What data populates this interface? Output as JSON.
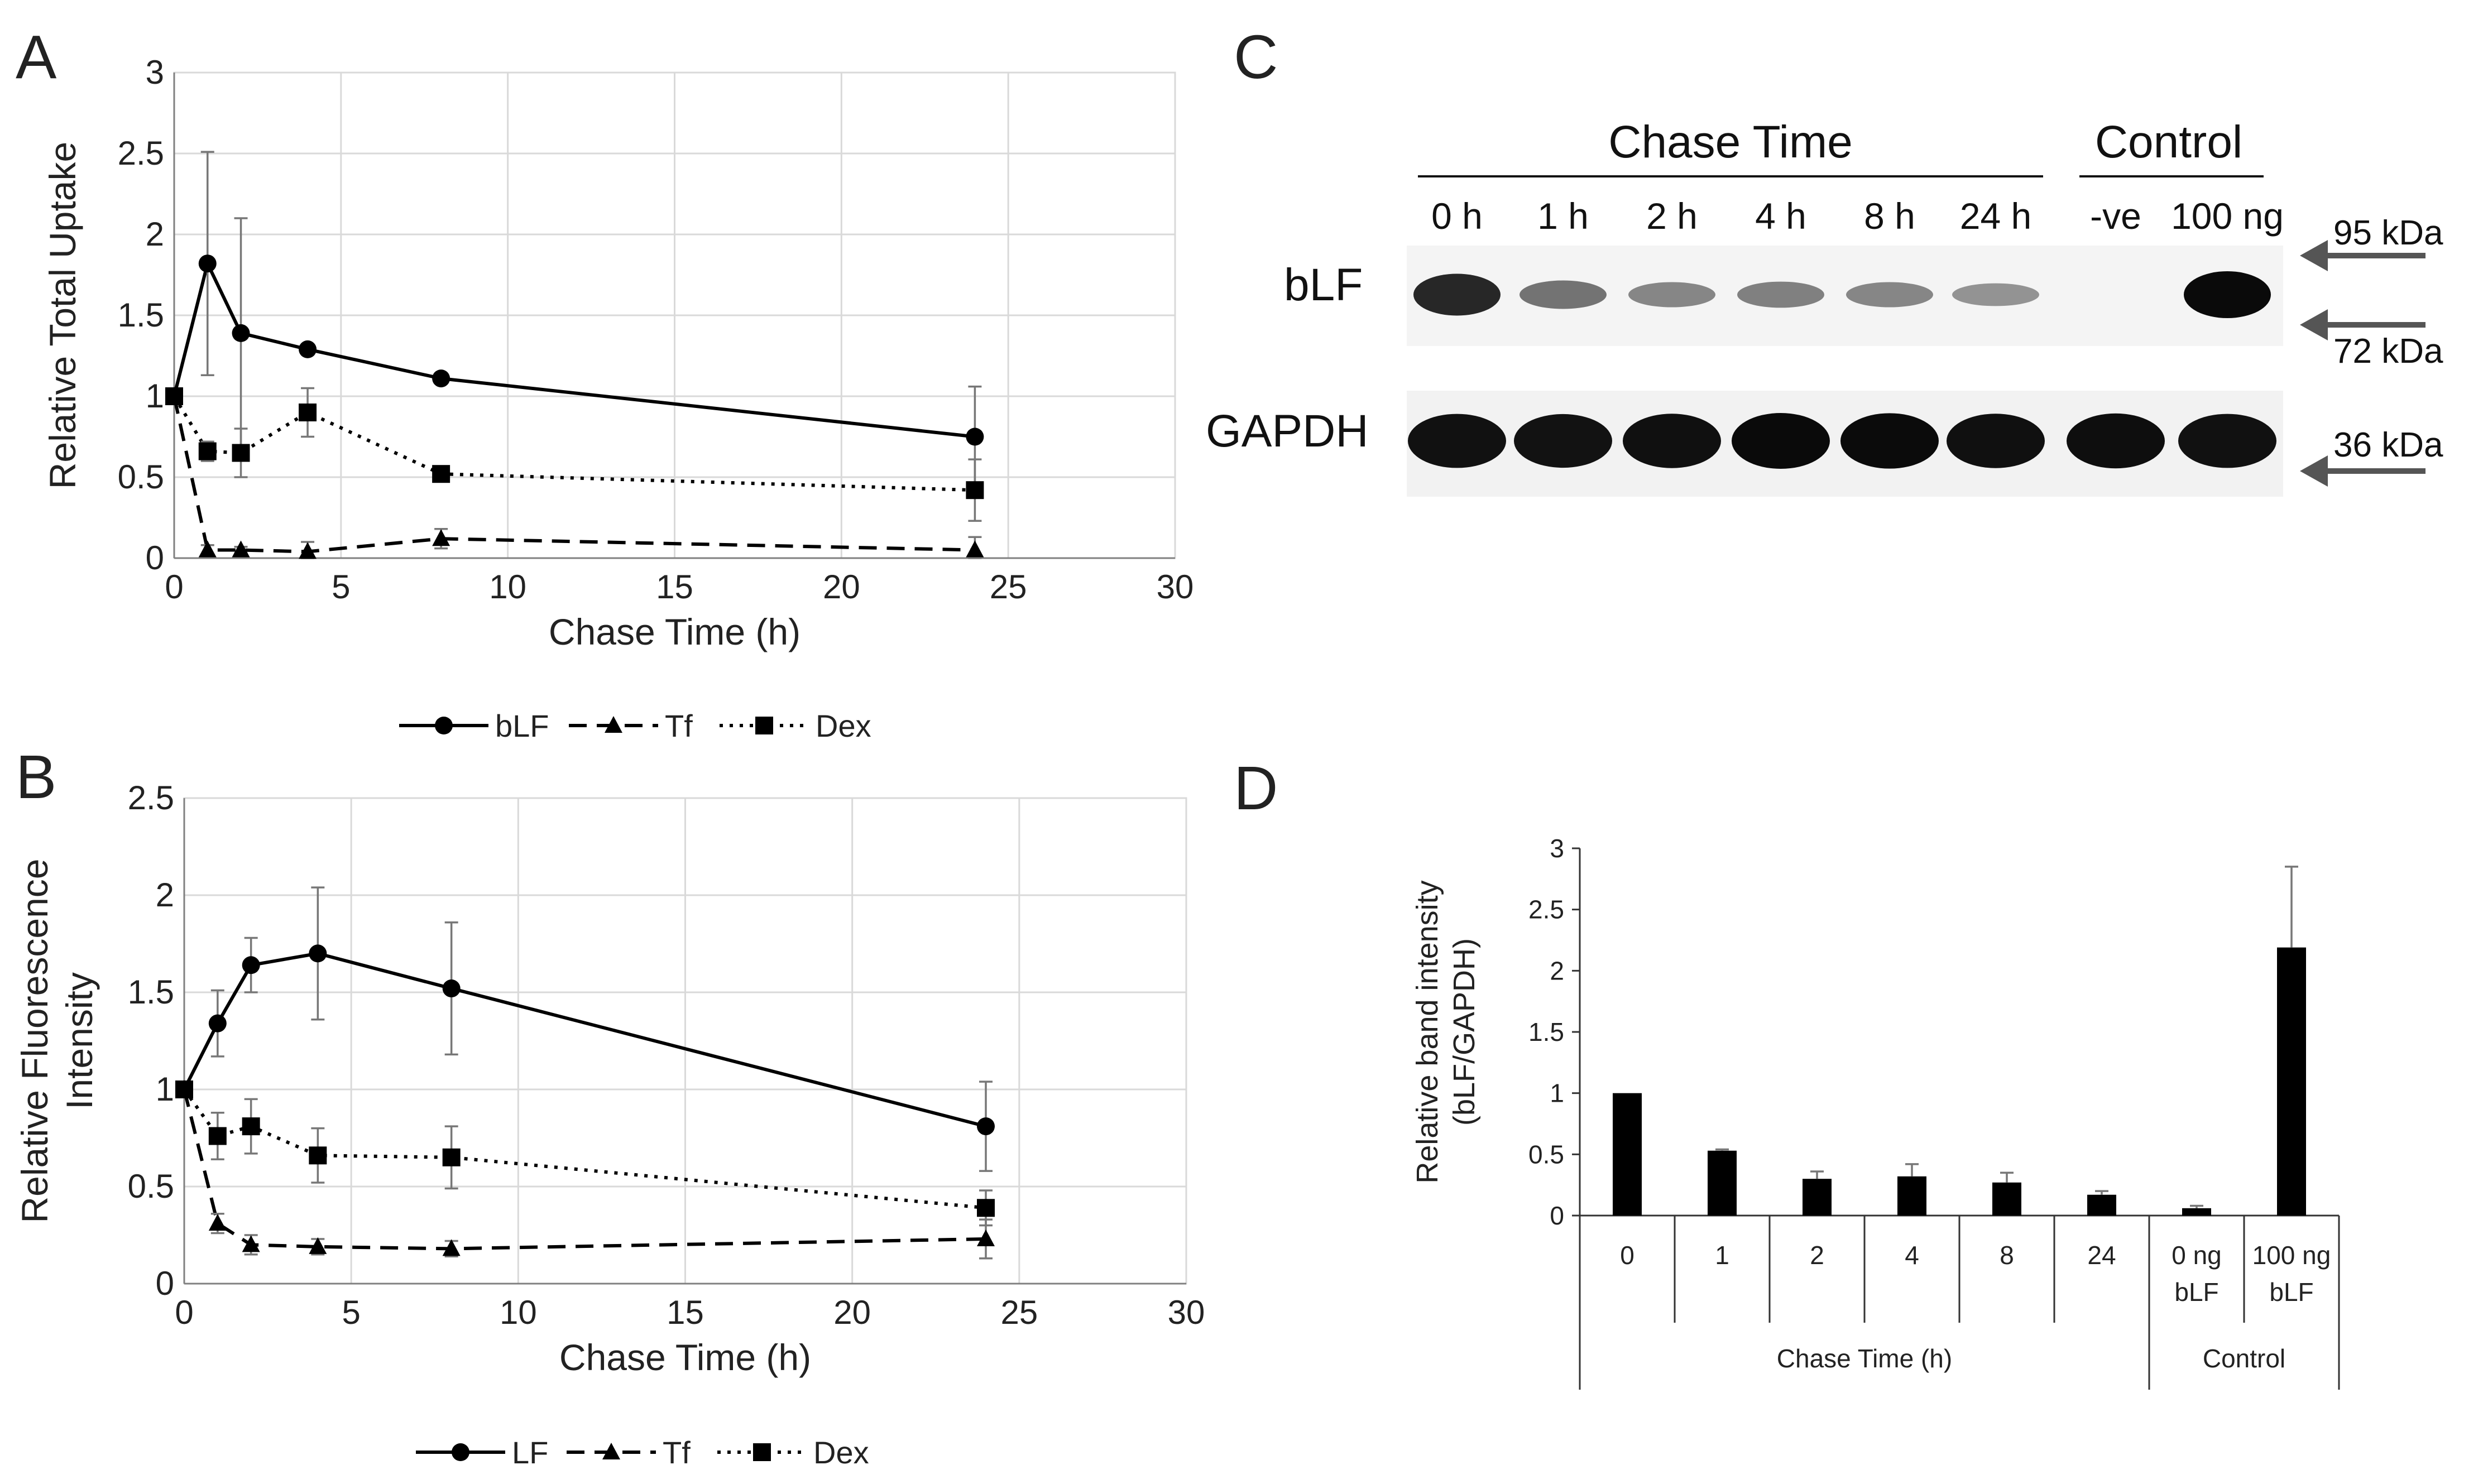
{
  "panel_labels": {
    "a": "A",
    "b": "B",
    "c": "C",
    "d": "D"
  },
  "chart_data": [
    {
      "panel": "A",
      "type": "line",
      "xlabel": "Chase Time (h)",
      "ylabel": "Relative Total Uptake",
      "xlim": [
        0,
        30
      ],
      "ylim": [
        0,
        3
      ],
      "xticks": [
        "0",
        "5",
        "10",
        "15",
        "20",
        "25",
        "30"
      ],
      "yticks": [
        "0",
        "0.5",
        "1",
        "1.5",
        "2",
        "2.5",
        "3"
      ],
      "grid": true,
      "legend_position": "bottom",
      "series": [
        {
          "name": "bLF",
          "style": "solid",
          "marker": "circle",
          "x": [
            0,
            1,
            2,
            4,
            8,
            24
          ],
          "y": [
            1.0,
            1.82,
            1.39,
            1.29,
            1.11,
            0.75
          ],
          "err": [
            0,
            0.69,
            0.71,
            0,
            0,
            0.31
          ]
        },
        {
          "name": "Tf",
          "style": "dashed",
          "marker": "triangle",
          "x": [
            0,
            1,
            2,
            4,
            8,
            24
          ],
          "y": [
            1.0,
            0.05,
            0.05,
            0.04,
            0.12,
            0.05
          ],
          "err": [
            0,
            0.03,
            0.02,
            0.06,
            0.06,
            0.08
          ]
        },
        {
          "name": "Dex",
          "style": "dotted",
          "marker": "square",
          "x": [
            0,
            1,
            2,
            4,
            8,
            24
          ],
          "y": [
            1.0,
            0.66,
            0.65,
            0.9,
            0.52,
            0.42
          ],
          "err": [
            0,
            0.06,
            0.15,
            0.15,
            0.04,
            0.19
          ]
        }
      ]
    },
    {
      "panel": "B",
      "type": "line",
      "xlabel": "Chase Time (h)",
      "ylabel_lines": [
        "Relative Fluorescence",
        "Intensity"
      ],
      "xlim": [
        0,
        30
      ],
      "ylim": [
        0,
        2.5
      ],
      "xticks": [
        "0",
        "5",
        "10",
        "15",
        "20",
        "25",
        "30"
      ],
      "yticks": [
        "0",
        "0.5",
        "1",
        "1.5",
        "2",
        "2.5"
      ],
      "grid": true,
      "legend_position": "bottom",
      "series": [
        {
          "name": "LF",
          "style": "solid",
          "marker": "circle",
          "x": [
            0,
            1,
            2,
            4,
            8,
            24
          ],
          "y": [
            1.0,
            1.34,
            1.64,
            1.7,
            1.52,
            0.81
          ],
          "err": [
            0,
            0.17,
            0.14,
            0.34,
            0.34,
            0.23
          ]
        },
        {
          "name": "Tf",
          "style": "dashed",
          "marker": "triangle",
          "x": [
            0,
            1,
            2,
            4,
            8,
            24
          ],
          "y": [
            1.0,
            0.31,
            0.2,
            0.19,
            0.18,
            0.23
          ],
          "err": [
            0,
            0.05,
            0.05,
            0.04,
            0.04,
            0.1
          ]
        },
        {
          "name": "Dex",
          "style": "dotted",
          "marker": "square",
          "x": [
            0,
            1,
            2,
            4,
            8,
            24
          ],
          "y": [
            1.0,
            0.76,
            0.81,
            0.66,
            0.65,
            0.39
          ],
          "err": [
            0,
            0.12,
            0.14,
            0.14,
            0.16,
            0.09
          ]
        }
      ]
    },
    {
      "panel": "D",
      "type": "bar",
      "ylabel_lines": [
        "Relative band intensity",
        "(bLF/GAPDH)"
      ],
      "ylim": [
        0,
        3
      ],
      "yticks": [
        "0",
        "0.5",
        "1",
        "1.5",
        "2",
        "2.5",
        "3"
      ],
      "categories": [
        [
          "0"
        ],
        [
          "1"
        ],
        [
          "2"
        ],
        [
          "4"
        ],
        [
          "8"
        ],
        [
          "24"
        ],
        [
          "0 ng",
          "bLF"
        ],
        [
          "100 ng",
          "bLF"
        ]
      ],
      "values": [
        1.0,
        0.53,
        0.3,
        0.32,
        0.27,
        0.17,
        0.06,
        2.19
      ],
      "err": [
        0,
        0.01,
        0.06,
        0.1,
        0.08,
        0.03,
        0.02,
        0.66
      ],
      "groups": [
        {
          "label": "Chase Time (h)",
          "span": [
            0,
            5
          ]
        },
        {
          "label": "Control",
          "span": [
            6,
            7
          ]
        }
      ]
    }
  ],
  "blot": {
    "header_chase": "Chase Time",
    "header_control": "Control",
    "lanes": [
      "0 h",
      "1 h",
      "2 h",
      "4 h",
      "8 h",
      "24 h",
      "-ve",
      "100 ng"
    ],
    "row_labels": [
      "bLF",
      "GAPDH"
    ],
    "markers": [
      "95 kDa",
      "72 kDa",
      "36 kDa"
    ],
    "blf_band_intensity": [
      0.85,
      0.45,
      0.35,
      0.38,
      0.35,
      0.28,
      0.0,
      1.0
    ],
    "gapdh_band_intensity": [
      0.9,
      0.88,
      0.92,
      1.0,
      0.98,
      0.92,
      0.95,
      0.9
    ]
  }
}
